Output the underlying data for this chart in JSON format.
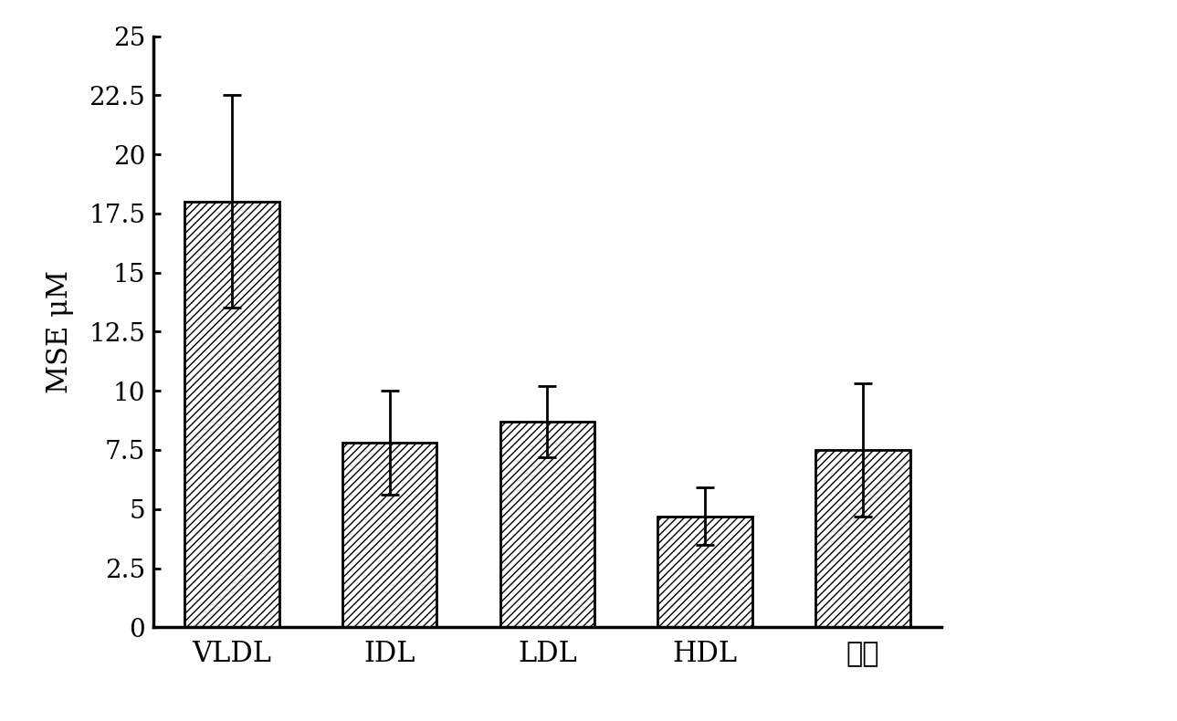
{
  "categories": [
    "VLDL",
    "IDL",
    "LDL",
    "HDL",
    "底部"
  ],
  "values": [
    18.0,
    7.8,
    8.7,
    4.7,
    7.5
  ],
  "errors": [
    4.5,
    2.2,
    1.5,
    1.2,
    2.8
  ],
  "ylabel": "MSE μM",
  "ylim": [
    0,
    25
  ],
  "ytick_values": [
    0,
    2.5,
    5.0,
    7.5,
    10.0,
    12.5,
    15.0,
    17.5,
    20.0,
    22.5,
    25.0
  ],
  "ytick_labels": [
    "0",
    "2.5",
    "5",
    "7.5",
    "10",
    "12.5",
    "15",
    "17.5",
    "20",
    "22.5",
    "25"
  ],
  "bar_color": "#ffffff",
  "bar_edgecolor": "#000000",
  "hatch": "////",
  "bar_width": 0.6,
  "background_color": "#ffffff",
  "ylabel_fontsize": 22,
  "tick_fontsize": 20,
  "xtick_fontsize": 22,
  "spine_linewidth": 2.5,
  "error_capsize": 7,
  "error_linewidth": 2.0
}
